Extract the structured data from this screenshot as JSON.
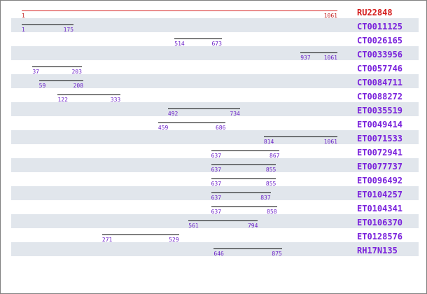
{
  "scale": {
    "min": 1,
    "max": 1061
  },
  "colors": {
    "reference": "#d41a1a",
    "label": "#7a22dc",
    "numbers": "#6a1fc8",
    "shade": "#e1e6ec",
    "segment": "#000000"
  },
  "reference": {
    "label": "RU22848",
    "start": 1,
    "end": 1061
  },
  "rows": [
    {
      "label": "CT0011125",
      "start": 1,
      "end": 175,
      "shaded": true
    },
    {
      "label": "CT0026165",
      "start": 514,
      "end": 673,
      "shaded": false
    },
    {
      "label": "CT0033956",
      "start": 937,
      "end": 1061,
      "shaded": true
    },
    {
      "label": "CT0057746",
      "start": 37,
      "end": 203,
      "shaded": false
    },
    {
      "label": "CT0084711",
      "start": 59,
      "end": 208,
      "shaded": true
    },
    {
      "label": "CT0088272",
      "start": 122,
      "end": 333,
      "shaded": false
    },
    {
      "label": "ET0035519",
      "start": 492,
      "end": 734,
      "shaded": true
    },
    {
      "label": "ET0049414",
      "start": 459,
      "end": 686,
      "shaded": false
    },
    {
      "label": "ET0071533",
      "start": 814,
      "end": 1061,
      "shaded": true
    },
    {
      "label": "ET0072941",
      "start": 637,
      "end": 867,
      "shaded": false
    },
    {
      "label": "ET0077737",
      "start": 637,
      "end": 855,
      "shaded": true
    },
    {
      "label": "ET0096492",
      "start": 637,
      "end": 855,
      "shaded": false
    },
    {
      "label": "ET0104257",
      "start": 637,
      "end": 837,
      "shaded": true
    },
    {
      "label": "ET0104341",
      "start": 637,
      "end": 858,
      "shaded": false
    },
    {
      "label": "ET0106370",
      "start": 561,
      "end": 794,
      "shaded": true
    },
    {
      "label": "ET0128576",
      "start": 271,
      "end": 529,
      "shaded": false
    },
    {
      "label": "RH17N135",
      "start": 646,
      "end": 875,
      "shaded": true
    }
  ]
}
